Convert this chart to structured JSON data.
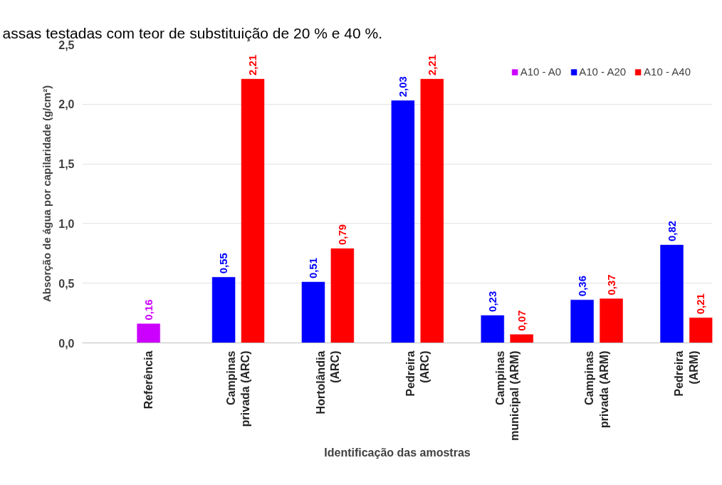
{
  "chart_data": {
    "type": "bar",
    "xlabel": "Identificação das amostras",
    "ylabel": "Absorção de água por capilaridade (g/cm²)",
    "annotations": [
      "assas testadas com teor de substituição de 20 % e 40 %."
    ],
    "categories": [
      "Referência",
      "Campinas privada (ARC)",
      "Hortolândia (ARC)",
      "Pedreira (ARC)",
      "Campinas municipal (ARM)",
      "Campinas privada (ARM)",
      "Pedreira (ARM)"
    ],
    "series": [
      {
        "name": "A10 - A0",
        "color": "#cc00ff",
        "values": [
          0.16,
          null,
          null,
          null,
          null,
          null,
          null
        ],
        "value_labels": [
          "0,16",
          null,
          null,
          null,
          null,
          null,
          null
        ]
      },
      {
        "name": "A10 - A20",
        "color": "#0000ff",
        "values": [
          null,
          0.55,
          0.51,
          2.03,
          0.23,
          0.36,
          0.82
        ],
        "value_labels": [
          null,
          "0,55",
          "0,51",
          "2,03",
          "0,23",
          "0,36",
          "0,82"
        ]
      },
      {
        "name": "A10 - A40",
        "color": "#ff0000",
        "values": [
          null,
          2.21,
          0.79,
          2.21,
          0.07,
          0.37,
          0.21
        ],
        "value_labels": [
          null,
          "2,21",
          "0,79",
          "2,21",
          "0,07",
          "0,37",
          "0,21"
        ]
      }
    ],
    "ylim": [
      0,
      2.5
    ],
    "yticks": [
      {
        "value": 0,
        "label": "0,0"
      },
      {
        "value": 0.5,
        "label": "0,5"
      },
      {
        "value": 1,
        "label": "1,0"
      },
      {
        "value": 1.5,
        "label": "1,5"
      },
      {
        "value": 2,
        "label": "2,0"
      },
      {
        "value": 2.5,
        "label": "2,5"
      }
    ],
    "grid": "y",
    "legend": "top right"
  }
}
